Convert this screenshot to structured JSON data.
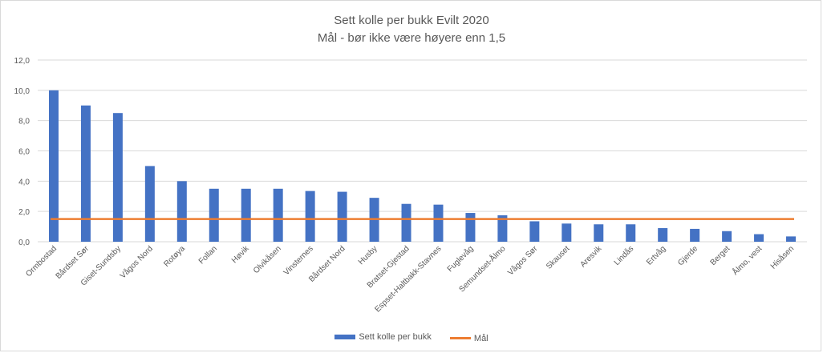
{
  "chart_data": {
    "type": "bar",
    "title": "Sett kolle per bukk Evilt 2020",
    "subtitle": "Mål - bør ikke være høyere enn 1,5",
    "categories": [
      "Ormbostad",
      "Bårdset Sør",
      "Giset-Sundsby",
      "Vågos Nord",
      "Rotøya",
      "Follan",
      "Høvik",
      "Olvikåsen",
      "Vinsternes",
      "Bårdset Nord",
      "Husby",
      "Bratset-Gjestad",
      "Espset-Haltbakk-Stavnes",
      "Fuglevåg",
      "Semundset-Ålmo",
      "Vågos Sør",
      "Skauset",
      "Aresvik",
      "Lindås",
      "Ertvåg",
      "Gjerde",
      "Berget",
      "Ålmo, vest",
      "Hisåsen"
    ],
    "series": [
      {
        "name": "Sett kolle per bukk",
        "type": "bar",
        "color": "#4472c4",
        "values": [
          10.0,
          9.0,
          8.5,
          5.0,
          4.0,
          3.5,
          3.5,
          3.5,
          3.35,
          3.3,
          2.9,
          2.5,
          2.45,
          1.9,
          1.75,
          1.35,
          1.2,
          1.15,
          1.15,
          0.9,
          0.85,
          0.7,
          0.5,
          0.35
        ]
      },
      {
        "name": "Mål",
        "type": "line",
        "color": "#ed7d31",
        "value": 1.5
      }
    ],
    "ylim": [
      0,
      12
    ],
    "yticks": [
      "0,0",
      "2,0",
      "4,0",
      "6,0",
      "8,0",
      "10,0",
      "12,0"
    ],
    "grid": true,
    "legend_position": "bottom"
  }
}
